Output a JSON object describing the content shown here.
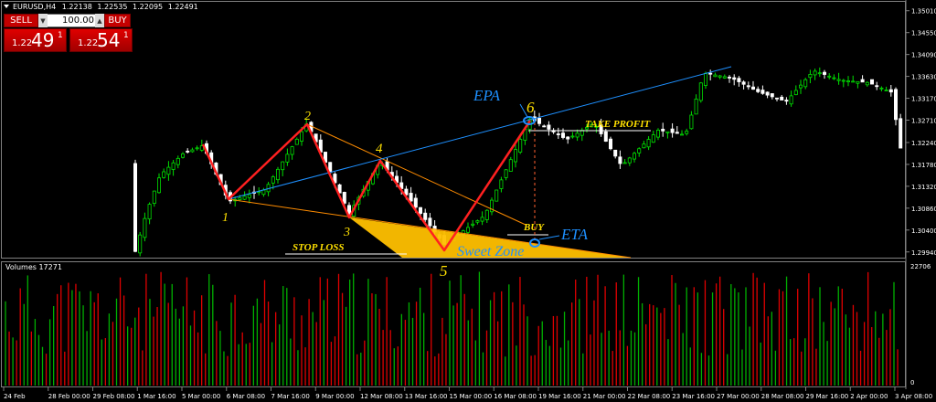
{
  "window": {
    "symbol_label": "EURUSD,H4",
    "ohlc": [
      "1.22138",
      "1.22535",
      "1.22095",
      "1.22491"
    ]
  },
  "trade_panel": {
    "sell_label": "SELL",
    "buy_label": "BUY",
    "lot_value": "100.00",
    "sell_price_small": "1.22",
    "sell_price_big": "49",
    "sell_price_sup": "1",
    "buy_price_small": "1.22",
    "buy_price_big": "54",
    "buy_price_sup": "1"
  },
  "colors": {
    "background": "#000000",
    "bull_candle": "#00e000",
    "bear_candle": "#ffffff",
    "volume_up": "#00b000",
    "volume_down": "#e00000",
    "pattern_line": "#ff2020",
    "trend_line": "#1e90ff",
    "channel_line": "#ff8c00",
    "zone_fill": "#ffc000",
    "annotation_yellow": "#ffe000",
    "annotation_blue": "#1e90ff",
    "axis_text": "#ffffff",
    "grid_separator": "#808080"
  },
  "chart_data": [
    {
      "type": "candlestick",
      "title": "EURUSD,H4",
      "y_ticks": [
        "1.35010",
        "1.34550",
        "1.34090",
        "1.33630",
        "1.33170",
        "1.32710",
        "1.32240",
        "1.31780",
        "1.31320",
        "1.30860",
        "1.30400",
        "1.29940"
      ],
      "ylim": [
        1.2982,
        1.3512
      ],
      "x_ticks": [
        "24 Feb",
        "28 Feb 00:00",
        "29 Feb 08:00",
        "1 Mar 16:00",
        "5 Mar 00:00",
        "6 Mar 08:00",
        "7 Mar 16:00",
        "9 Mar 00:00",
        "12 Mar 08:00",
        "13 Mar 16:00",
        "15 Mar 00:00",
        "16 Mar 08:00",
        "19 Mar 16:00",
        "21 Mar 00:00",
        "22 Mar 08:00",
        "23 Mar 16:00",
        "27 Mar 00:00",
        "28 Mar 08:00",
        "29 Mar 16:00",
        "2 Apr 00:00",
        "3 Apr 08:00"
      ],
      "grid": false,
      "wave_points": [
        {
          "label": "1",
          "price": 1.31
        },
        {
          "label": "2",
          "price": 1.3265
        },
        {
          "label": "3",
          "price": 1.3075
        },
        {
          "label": "4",
          "price": 1.3185
        },
        {
          "label": "5",
          "price": 1.301
        },
        {
          "label": "6",
          "price": 1.3275
        }
      ],
      "annotations": {
        "epa": "EPA",
        "eta": "ETA",
        "take_profit": "TAKE PROFIT",
        "buy": "BUY",
        "stop_loss": "STOP LOSS",
        "sweet_zone": "Sweet Zone"
      }
    },
    {
      "type": "bar",
      "title": "Volumes 17271",
      "y_ticks": [
        "22706",
        "0"
      ],
      "ylim": [
        0,
        22706
      ]
    }
  ]
}
